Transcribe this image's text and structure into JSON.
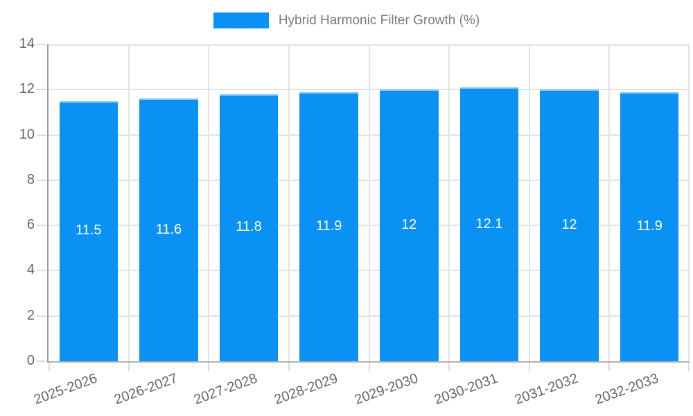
{
  "legend": {
    "label": "Hybrid Harmonic Filter Growth (%)"
  },
  "chart_data": {
    "type": "bar",
    "title": "",
    "categories": [
      "2025-2026",
      "2026-2027",
      "2027-2028",
      "2028-2029",
      "2029-2030",
      "2030-2031",
      "2031-2032",
      "2032-2033"
    ],
    "values": [
      11.5,
      11.6,
      11.8,
      11.9,
      12,
      12.1,
      12,
      11.9
    ],
    "value_labels": [
      "11.5",
      "11.6",
      "11.8",
      "11.9",
      "12",
      "12.1",
      "12",
      "11.9"
    ],
    "series_name": "Hybrid Harmonic Filter Growth (%)",
    "xlabel": "",
    "ylabel": "",
    "ylim": [
      0,
      14
    ],
    "yticks": [
      0,
      2,
      4,
      6,
      8,
      10,
      12,
      14
    ],
    "grid": true,
    "legend_position": "top",
    "x_tick_rotation": -20
  },
  "colors": {
    "bar": "#0992F3",
    "bar_border": "#86C5F9",
    "grid": "#E3E3E3",
    "tick": "#DCDCDC",
    "axis_left": "#9A9A9A",
    "axis_bottom": "#B0B0B0",
    "axis_text": "#666666",
    "legend_text": "#7A7A7A",
    "value_text": "#FFFFFF"
  }
}
